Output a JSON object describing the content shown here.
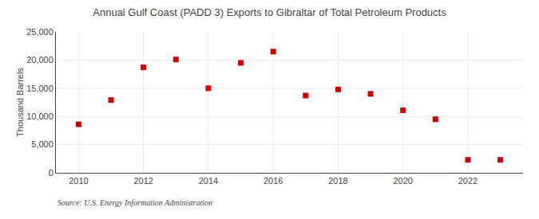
{
  "chart_data": {
    "type": "scatter",
    "title": "Annual Gulf Coast (PADD 3) Exports to Gibraltar of Total Petroleum Products",
    "ylabel": "Thousand Barrels",
    "annotations": [
      "Source: U.S. Energy Information Administration"
    ],
    "x": [
      2010,
      2011,
      2012,
      2013,
      2014,
      2015,
      2016,
      2017,
      2018,
      2019,
      2020,
      2021,
      2022,
      2023
    ],
    "values": [
      8600,
      12900,
      18700,
      20100,
      15000,
      19500,
      21500,
      13700,
      14800,
      14000,
      11100,
      9500,
      2300,
      2300
    ],
    "color": "#cc0000",
    "marker": "square",
    "xlim": [
      2009.3,
      2023.7
    ],
    "xticks": [
      2010,
      2012,
      2014,
      2016,
      2018,
      2020,
      2022
    ],
    "ylim": [
      0,
      25000
    ],
    "yticks": [
      0,
      {
        "value": 5000,
        "label": "5,000"
      },
      {
        "value": 10000,
        "label": "10,000"
      },
      {
        "value": 15000,
        "label": "15,000"
      },
      {
        "value": 20000,
        "label": "20,000"
      },
      {
        "value": 25000,
        "label": "25,000"
      }
    ],
    "grid": true
  }
}
